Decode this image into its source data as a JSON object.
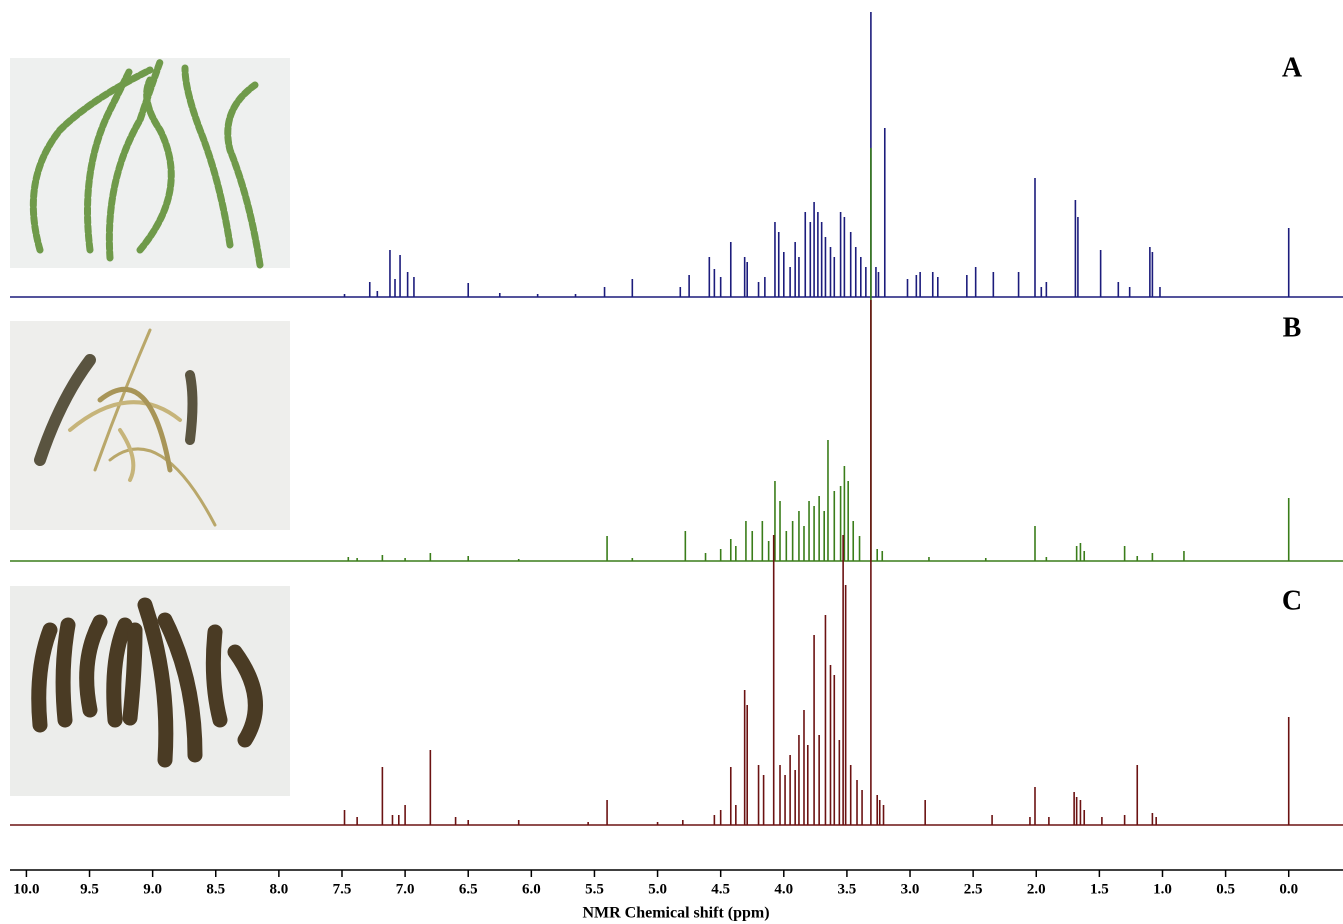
{
  "chart_data": {
    "type": "spectrum",
    "xlabel": "NMR Chemical shift (ppm)",
    "xlim": [
      10.13,
      -0.43
    ],
    "xticks": [
      {
        "value": 10,
        "label": "10.0"
      },
      9.5,
      {
        "value": 9,
        "label": "9.0"
      },
      8.5,
      {
        "value": 8,
        "label": "8.0"
      },
      7.5,
      {
        "value": 7,
        "label": "7.0"
      },
      6.5,
      {
        "value": 6,
        "label": "6.0"
      },
      5.5,
      {
        "value": 5,
        "label": "5.0"
      },
      4.5,
      {
        "value": 4,
        "label": "4.0"
      },
      3.5,
      {
        "value": 3,
        "label": "3.0"
      },
      2.5,
      {
        "value": 2,
        "label": "2.0"
      },
      1.5,
      {
        "value": 1,
        "label": "1.0"
      },
      0.5,
      {
        "value": 0,
        "label": "0.0"
      }
    ],
    "series": [
      {
        "name": "A",
        "color": "#1c1c7c",
        "x": [
          7.48,
          7.28,
          7.22,
          7.12,
          7.08,
          7.04,
          6.98,
          6.93,
          6.5,
          6.25,
          5.95,
          5.65,
          5.42,
          5.2,
          4.82,
          4.75,
          4.59,
          4.55,
          4.5,
          4.42,
          4.31,
          4.29,
          4.2,
          4.15,
          4.07,
          4.04,
          4.0,
          3.95,
          3.91,
          3.88,
          3.83,
          3.79,
          3.76,
          3.73,
          3.7,
          3.67,
          3.63,
          3.6,
          3.55,
          3.52,
          3.47,
          3.43,
          3.39,
          3.35,
          3.31,
          3.27,
          3.25,
          3.2,
          3.02,
          2.95,
          2.92,
          2.82,
          2.78,
          2.55,
          2.48,
          2.34,
          2.14,
          2.01,
          1.96,
          1.92,
          1.69,
          1.67,
          1.49,
          1.35,
          1.26,
          1.1,
          1.08,
          1.02,
          0.0
        ],
        "values": [
          3,
          15,
          6,
          47,
          18,
          42,
          25,
          20,
          14,
          4,
          3,
          3,
          10,
          18,
          10,
          22,
          40,
          28,
          20,
          55,
          40,
          35,
          15,
          20,
          75,
          65,
          45,
          30,
          55,
          40,
          85,
          75,
          95,
          85,
          75,
          60,
          50,
          40,
          85,
          80,
          65,
          50,
          40,
          30,
          285,
          30,
          25,
          169,
          18,
          22,
          25,
          25,
          20,
          22,
          30,
          25,
          25,
          119,
          10,
          15,
          97,
          80,
          47,
          15,
          10,
          50,
          45,
          10,
          69
        ]
      },
      {
        "name": "B",
        "color": "#3a7d1a",
        "x": [
          7.45,
          7.38,
          7.18,
          7.0,
          6.8,
          6.5,
          6.1,
          5.4,
          5.2,
          4.78,
          4.62,
          4.5,
          4.42,
          4.38,
          4.3,
          4.25,
          4.17,
          4.12,
          4.07,
          4.03,
          3.98,
          3.93,
          3.88,
          3.84,
          3.8,
          3.76,
          3.72,
          3.68,
          3.65,
          3.6,
          3.55,
          3.52,
          3.49,
          3.45,
          3.4,
          3.31,
          3.26,
          3.22,
          2.85,
          2.4,
          2.01,
          1.92,
          1.68,
          1.65,
          1.62,
          1.3,
          1.2,
          1.08,
          0.83,
          0.0
        ],
        "values": [
          4,
          3,
          6,
          3,
          8,
          5,
          2,
          25,
          3,
          30,
          8,
          12,
          22,
          15,
          40,
          30,
          40,
          20,
          80,
          60,
          30,
          40,
          50,
          35,
          60,
          55,
          65,
          50,
          121,
          70,
          75,
          95,
          80,
          40,
          25,
          413,
          12,
          10,
          4,
          3,
          35,
          4,
          15,
          18,
          10,
          15,
          5,
          8,
          10,
          63
        ]
      },
      {
        "name": "C",
        "color": "#6b1212",
        "x": [
          7.48,
          7.38,
          7.18,
          7.1,
          7.05,
          7.0,
          6.8,
          6.6,
          6.5,
          6.1,
          5.55,
          5.4,
          5.0,
          4.8,
          4.55,
          4.5,
          4.42,
          4.38,
          4.31,
          4.29,
          4.2,
          4.16,
          4.08,
          4.03,
          3.99,
          3.95,
          3.91,
          3.88,
          3.84,
          3.81,
          3.76,
          3.72,
          3.67,
          3.63,
          3.6,
          3.56,
          3.53,
          3.51,
          3.47,
          3.42,
          3.38,
          3.31,
          3.26,
          3.24,
          3.21,
          2.88,
          2.35,
          2.05,
          2.01,
          1.9,
          1.7,
          1.68,
          1.65,
          1.62,
          1.48,
          1.3,
          1.2,
          1.08,
          1.05,
          0.0
        ],
        "values": [
          15,
          8,
          58,
          10,
          10,
          20,
          75,
          8,
          5,
          5,
          3,
          25,
          3,
          5,
          10,
          15,
          58,
          20,
          135,
          120,
          60,
          50,
          290,
          60,
          50,
          70,
          55,
          90,
          115,
          80,
          190,
          90,
          210,
          160,
          150,
          85,
          290,
          240,
          60,
          45,
          35,
          525,
          30,
          25,
          20,
          25,
          10,
          8,
          38,
          8,
          33,
          28,
          25,
          15,
          8,
          10,
          60,
          12,
          8,
          108
        ]
      }
    ]
  }
}
